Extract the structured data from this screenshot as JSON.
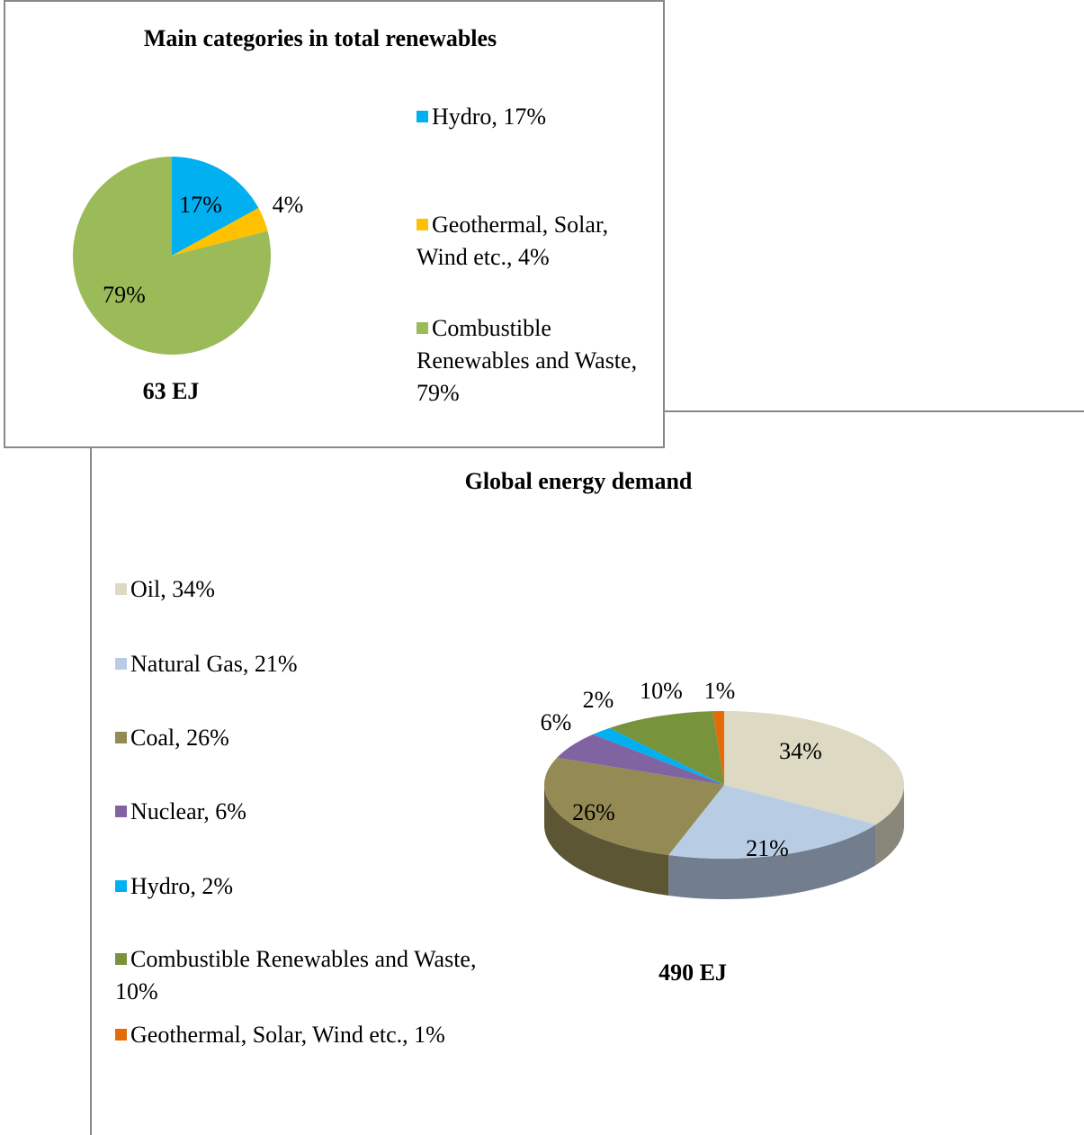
{
  "chart_data": [
    {
      "type": "pie",
      "title": "Main  categories in total renewables",
      "categories": [
        "Hydro, 17%",
        "Geothermal, Solar, Wind etc., 4%",
        "Combustible Renewables and Waste, 79%"
      ],
      "values": [
        17,
        4,
        79
      ],
      "value_labels": [
        "17%",
        "4%",
        "79%"
      ],
      "colors": [
        "#00b0f0",
        "#ffc000",
        "#9bbb59"
      ],
      "annotation": "63 EJ"
    },
    {
      "type": "pie3d",
      "title": "Global energy demand",
      "categories": [
        "Oil, 34%",
        "Natural Gas, 21%",
        "Coal, 26%",
        "Nuclear, 6%",
        "Hydro, 2%",
        "Combustible Renewables and Waste, 10%",
        "Geothermal, Solar, Wind etc., 1%"
      ],
      "values": [
        34,
        21,
        26,
        6,
        2,
        10,
        1
      ],
      "value_labels": [
        "34%",
        "21%",
        "26%",
        "6%",
        "2%",
        "10%",
        "1%"
      ],
      "colors": [
        "#ddd9c3",
        "#b8cce4",
        "#948a54",
        "#8064a2",
        "#00b0f0",
        "#77933c",
        "#e36c09"
      ],
      "annotation": "490 EJ"
    }
  ]
}
